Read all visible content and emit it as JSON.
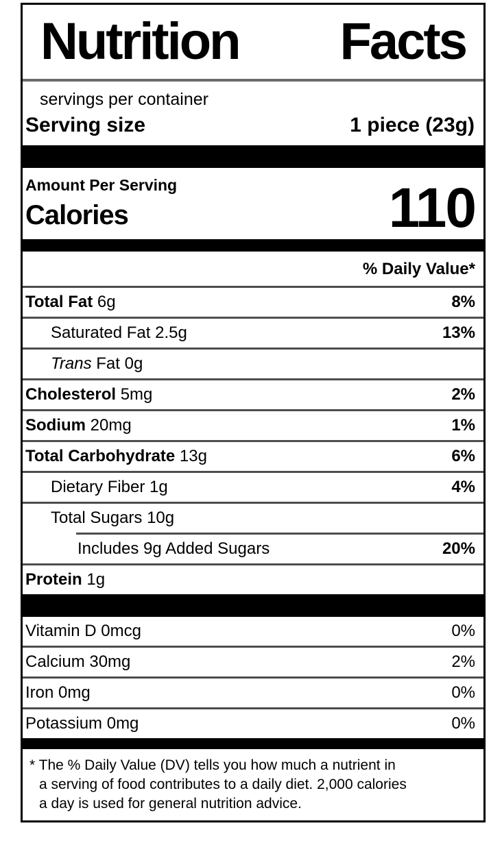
{
  "colors": {
    "background": "#ffffff",
    "text": "#000000",
    "bar": "#000000",
    "hairline": "#4d4d4d",
    "title_rule": "#6b6b6b"
  },
  "label": {
    "title": "Nutrition Facts",
    "servings_per_container": "servings per container",
    "serving_size": {
      "label": "Serving size",
      "value": "1 piece (23g)"
    },
    "amount_per_serving": "Amount Per Serving",
    "calories": {
      "label": "Calories",
      "value": "110"
    },
    "daily_value_header": "% Daily Value*",
    "nutrients": [
      {
        "name": "Total Fat",
        "amount": "6g",
        "dv": "8%",
        "bold": true,
        "indent": 0
      },
      {
        "name": "Saturated Fat",
        "amount": "2.5g",
        "dv": "13%",
        "bold": false,
        "indent": 1
      },
      {
        "name": "Trans Fat",
        "amount": "0g",
        "dv": "",
        "bold": false,
        "indent": 1,
        "italic_first_word": true
      },
      {
        "name": "Cholesterol",
        "amount": "5mg",
        "dv": "2%",
        "bold": true,
        "indent": 0
      },
      {
        "name": "Sodium",
        "amount": "20mg",
        "dv": "1%",
        "bold": true,
        "indent": 0
      },
      {
        "name": "Total Carbohydrate",
        "amount": "13g",
        "dv": "6%",
        "bold": true,
        "indent": 0
      },
      {
        "name": "Dietary Fiber",
        "amount": "1g",
        "dv": "4%",
        "bold": false,
        "indent": 1
      },
      {
        "name": "Total Sugars",
        "amount": "10g",
        "dv": "",
        "bold": false,
        "indent": 1
      },
      {
        "name": "Includes 9g Added Sugars",
        "amount": "",
        "dv": "20%",
        "bold": false,
        "indent": 2,
        "rule_indent": true
      },
      {
        "name": "Protein",
        "amount": "1g",
        "dv": "",
        "bold": true,
        "indent": 0
      }
    ],
    "vitamins": [
      {
        "name": "Vitamin D",
        "amount": "0mcg",
        "dv": "0%"
      },
      {
        "name": "Calcium",
        "amount": "30mg",
        "dv": "2%"
      },
      {
        "name": "Iron",
        "amount": "0mg",
        "dv": "0%"
      },
      {
        "name": "Potassium",
        "amount": "0mg",
        "dv": "0%"
      }
    ],
    "footnote_lines": [
      "* The % Daily Value (DV) tells you how much a nutrient in",
      "a serving of food contributes to a daily diet. 2,000 calories",
      "a day is used for general nutrition advice."
    ]
  }
}
